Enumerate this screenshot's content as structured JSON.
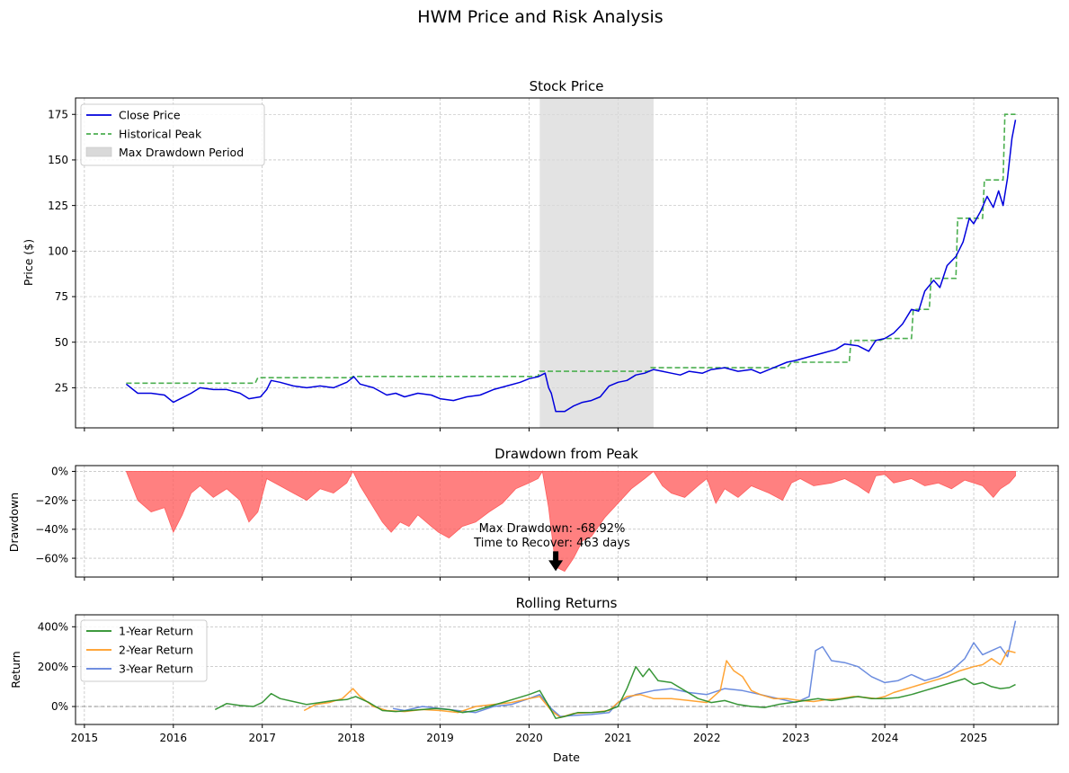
{
  "figure_title": "HWM Price and Risk Analysis",
  "colors": {
    "close": "#0000dd",
    "peak": "#4caf50",
    "drawdown_fill": "#ff5c5c",
    "drawdown_shade": "#d9d9d9",
    "ret1": "#228b22",
    "ret2": "#ff9a1f",
    "ret3": "#5b7fdb"
  },
  "x_axis": {
    "label": "Date",
    "ticks": [
      "2015",
      "2016",
      "2017",
      "2018",
      "2019",
      "2020",
      "2021",
      "2022",
      "2023",
      "2024",
      "2025"
    ]
  },
  "chart_data": [
    {
      "type": "line",
      "title": "Stock Price",
      "ylabel": "Price ($)",
      "xlim": [
        2014.9,
        2025.95
      ],
      "ylim": [
        3,
        184
      ],
      "yticks": [
        25,
        50,
        75,
        100,
        125,
        150,
        175
      ],
      "grid": true,
      "legend": "top-left",
      "shaded_period": {
        "name": "Max Drawdown Period",
        "start": 2020.12,
        "end": 2021.4
      },
      "series": [
        {
          "name": "Close Price",
          "x": [
            2015.47,
            2015.6,
            2015.75,
            2015.9,
            2016.0,
            2016.08,
            2016.2,
            2016.3,
            2016.45,
            2016.6,
            2016.75,
            2016.85,
            2016.98,
            2017.05,
            2017.1,
            2017.2,
            2017.35,
            2017.5,
            2017.65,
            2017.8,
            2017.95,
            2018.03,
            2018.1,
            2018.25,
            2018.4,
            2018.5,
            2018.6,
            2018.75,
            2018.9,
            2019.0,
            2019.15,
            2019.3,
            2019.45,
            2019.6,
            2019.75,
            2019.9,
            2020.0,
            2020.1,
            2020.18,
            2020.22,
            2020.25,
            2020.3,
            2020.4,
            2020.5,
            2020.6,
            2020.7,
            2020.8,
            2020.9,
            2021.0,
            2021.1,
            2021.2,
            2021.3,
            2021.4,
            2021.5,
            2021.6,
            2021.7,
            2021.8,
            2021.95,
            2022.05,
            2022.2,
            2022.35,
            2022.5,
            2022.6,
            2022.75,
            2022.9,
            2023.0,
            2023.15,
            2023.3,
            2023.45,
            2023.55,
            2023.7,
            2023.82,
            2023.9,
            2024.0,
            2024.1,
            2024.2,
            2024.3,
            2024.38,
            2024.45,
            2024.55,
            2024.62,
            2024.7,
            2024.8,
            2024.88,
            2024.95,
            2025.0,
            2025.08,
            2025.15,
            2025.22,
            2025.28,
            2025.33,
            2025.38,
            2025.43,
            2025.47
          ],
          "values": [
            27,
            22,
            22,
            21,
            17,
            19,
            22,
            25,
            24,
            24,
            22,
            19,
            20,
            24,
            29,
            28,
            26,
            25,
            26,
            25,
            28,
            31,
            27,
            25,
            21,
            22,
            20,
            22,
            21,
            19,
            18,
            20,
            21,
            24,
            26,
            28,
            30,
            31,
            33,
            25,
            22,
            12,
            12,
            15,
            17,
            18,
            20,
            26,
            28,
            29,
            32,
            33,
            35,
            34,
            33,
            32,
            34,
            33,
            35,
            36,
            34,
            35,
            33,
            36,
            39,
            40,
            42,
            44,
            46,
            49,
            48,
            45,
            51,
            52,
            55,
            60,
            68,
            67,
            78,
            84,
            80,
            92,
            97,
            105,
            118,
            115,
            122,
            130,
            124,
            133,
            125,
            140,
            162,
            172
          ]
        },
        {
          "name": "Historical Peak",
          "x": [
            2015.47,
            2016.92,
            2016.95,
            2018.0,
            2018.02,
            2020.1,
            2020.12,
            2021.35,
            2021.37,
            2022.9,
            2022.95,
            2023.6,
            2023.62,
            2023.95,
            2024.0,
            2024.3,
            2024.32,
            2024.5,
            2024.52,
            2024.8,
            2024.82,
            2025.1,
            2025.12,
            2025.33,
            2025.35,
            2025.47
          ],
          "values": [
            27.5,
            27.5,
            30.5,
            30.5,
            31.2,
            31.2,
            34,
            34,
            36,
            36,
            39,
            39,
            51,
            51,
            52,
            52,
            68,
            68,
            85,
            85,
            118,
            118,
            139,
            139,
            175,
            175
          ]
        }
      ]
    },
    {
      "type": "area",
      "title": "Drawdown from Peak",
      "ylabel": "Drawdown",
      "xlim": [
        2014.9,
        2025.95
      ],
      "ylim": [
        -73,
        4
      ],
      "yticks": [
        "0%",
        "−20%",
        "−40%",
        "−60%"
      ],
      "ytick_values": [
        0,
        -20,
        -40,
        -60
      ],
      "grid": true,
      "annotation": {
        "line1": "Max Drawdown: -68.92%",
        "line2": "Time to Recover: 463 days",
        "point_x": 2020.3,
        "point_y": -68.92
      },
      "series": [
        {
          "name": "Drawdown",
          "x": [
            2015.47,
            2015.6,
            2015.75,
            2015.9,
            2016.0,
            2016.1,
            2016.2,
            2016.3,
            2016.45,
            2016.6,
            2016.75,
            2016.85,
            2016.95,
            2017.05,
            2017.2,
            2017.35,
            2017.5,
            2017.65,
            2017.8,
            2017.95,
            2018.02,
            2018.1,
            2018.2,
            2018.35,
            2018.45,
            2018.55,
            2018.65,
            2018.75,
            2018.9,
            2018.98,
            2019.1,
            2019.25,
            2019.4,
            2019.55,
            2019.7,
            2019.85,
            2020.0,
            2020.1,
            2020.15,
            2020.22,
            2020.3,
            2020.4,
            2020.5,
            2020.6,
            2020.7,
            2020.85,
            2021.0,
            2021.15,
            2021.3,
            2021.4,
            2021.5,
            2021.6,
            2021.75,
            2021.9,
            2022.0,
            2022.1,
            2022.2,
            2022.35,
            2022.5,
            2022.7,
            2022.85,
            2022.95,
            2023.05,
            2023.2,
            2023.4,
            2023.55,
            2023.7,
            2023.82,
            2023.9,
            2024.0,
            2024.1,
            2024.3,
            2024.45,
            2024.6,
            2024.75,
            2024.9,
            2025.0,
            2025.1,
            2025.22,
            2025.3,
            2025.4,
            2025.47
          ],
          "values": [
            0,
            -20,
            -28,
            -25,
            -42,
            -30,
            -15,
            -10,
            -18,
            -12,
            -20,
            -35,
            -28,
            -5,
            -10,
            -15,
            -20,
            -12,
            -15,
            -8,
            0,
            -10,
            -20,
            -35,
            -42,
            -35,
            -38,
            -30,
            -38,
            -42,
            -46,
            -38,
            -35,
            -28,
            -22,
            -12,
            -8,
            -5,
            0,
            -25,
            -66,
            -69,
            -60,
            -48,
            -45,
            -32,
            -22,
            -12,
            -5,
            0,
            -10,
            -15,
            -18,
            -10,
            -5,
            -22,
            -12,
            -18,
            -10,
            -15,
            -20,
            -8,
            -5,
            -10,
            -8,
            -5,
            -10,
            -15,
            -3,
            -2,
            -8,
            -5,
            -10,
            -8,
            -12,
            -6,
            -8,
            -10,
            -18,
            -12,
            -8,
            -3
          ]
        }
      ]
    },
    {
      "type": "line",
      "title": "Rolling Returns",
      "ylabel": "Return",
      "xlabel": "Date",
      "xlim": [
        2014.9,
        2025.95
      ],
      "ylim": [
        -90,
        460
      ],
      "yticks": [
        "0%",
        "200%",
        "400%"
      ],
      "ytick_values": [
        0,
        200,
        400
      ],
      "grid": true,
      "legend": "top-left",
      "series": [
        {
          "name": "1-Year Return",
          "x": [
            2016.47,
            2016.6,
            2016.75,
            2016.9,
            2017.0,
            2017.1,
            2017.2,
            2017.35,
            2017.5,
            2017.65,
            2017.8,
            2017.95,
            2018.05,
            2018.2,
            2018.35,
            2018.5,
            2018.65,
            2018.8,
            2018.95,
            2019.1,
            2019.25,
            2019.4,
            2019.55,
            2019.7,
            2019.85,
            2020.0,
            2020.12,
            2020.2,
            2020.3,
            2020.4,
            2020.55,
            2020.7,
            2020.85,
            2021.0,
            2021.1,
            2021.2,
            2021.28,
            2021.35,
            2021.45,
            2021.6,
            2021.75,
            2021.9,
            2022.05,
            2022.2,
            2022.35,
            2022.5,
            2022.65,
            2022.8,
            2022.95,
            2023.1,
            2023.25,
            2023.4,
            2023.55,
            2023.7,
            2023.85,
            2024.0,
            2024.15,
            2024.3,
            2024.45,
            2024.6,
            2024.75,
            2024.9,
            2025.0,
            2025.1,
            2025.2,
            2025.3,
            2025.4,
            2025.47
          ],
          "values": [
            -15,
            15,
            5,
            0,
            20,
            65,
            40,
            25,
            10,
            20,
            30,
            35,
            50,
            20,
            -20,
            -25,
            -20,
            -15,
            -10,
            -15,
            -30,
            -20,
            0,
            20,
            40,
            60,
            80,
            20,
            -60,
            -50,
            -30,
            -30,
            -25,
            0,
            90,
            200,
            150,
            190,
            130,
            120,
            80,
            40,
            20,
            30,
            10,
            0,
            -5,
            10,
            20,
            30,
            40,
            30,
            40,
            50,
            40,
            40,
            45,
            60,
            80,
            100,
            120,
            140,
            110,
            120,
            100,
            90,
            95,
            110
          ]
        },
        {
          "name": "2-Year Return",
          "x": [
            2017.47,
            2017.6,
            2017.75,
            2017.9,
            2018.02,
            2018.1,
            2018.25,
            2018.4,
            2018.6,
            2018.8,
            2019.0,
            2019.2,
            2019.4,
            2019.6,
            2019.8,
            2020.0,
            2020.12,
            2020.25,
            2020.35,
            2020.5,
            2020.7,
            2020.9,
            2021.0,
            2021.1,
            2021.25,
            2021.4,
            2021.6,
            2021.8,
            2022.0,
            2022.15,
            2022.22,
            2022.3,
            2022.4,
            2022.5,
            2022.6,
            2022.75,
            2022.9,
            2023.05,
            2023.2,
            2023.35,
            2023.5,
            2023.65,
            2023.8,
            2023.9,
            2024.0,
            2024.1,
            2024.25,
            2024.4,
            2024.55,
            2024.7,
            2024.85,
            2025.0,
            2025.1,
            2025.2,
            2025.3,
            2025.38,
            2025.47
          ],
          "values": [
            -20,
            10,
            20,
            40,
            90,
            50,
            0,
            -20,
            -25,
            -15,
            -20,
            -30,
            0,
            10,
            20,
            40,
            50,
            -20,
            -55,
            -35,
            -30,
            -20,
            20,
            50,
            60,
            40,
            40,
            30,
            20,
            80,
            230,
            180,
            150,
            80,
            60,
            40,
            40,
            30,
            25,
            35,
            40,
            50,
            45,
            40,
            50,
            70,
            90,
            110,
            130,
            150,
            180,
            200,
            210,
            240,
            210,
            280,
            270
          ]
        },
        {
          "name": "3-Year Return",
          "x": [
            2018.47,
            2018.6,
            2018.8,
            2019.0,
            2019.2,
            2019.4,
            2019.6,
            2019.8,
            2020.0,
            2020.12,
            2020.25,
            2020.35,
            2020.5,
            2020.7,
            2020.9,
            2021.0,
            2021.2,
            2021.4,
            2021.6,
            2021.8,
            2022.0,
            2022.2,
            2022.4,
            2022.6,
            2022.8,
            2023.0,
            2023.15,
            2023.22,
            2023.3,
            2023.4,
            2023.55,
            2023.7,
            2023.85,
            2024.0,
            2024.15,
            2024.3,
            2024.45,
            2024.6,
            2024.75,
            2024.9,
            2025.0,
            2025.1,
            2025.2,
            2025.3,
            2025.38,
            2025.47
          ],
          "values": [
            -10,
            -20,
            0,
            -10,
            -20,
            -30,
            0,
            10,
            40,
            60,
            -10,
            -50,
            -45,
            -40,
            -30,
            20,
            60,
            80,
            90,
            70,
            60,
            90,
            80,
            60,
            40,
            20,
            50,
            280,
            300,
            230,
            220,
            200,
            150,
            120,
            130,
            160,
            130,
            150,
            180,
            240,
            320,
            260,
            280,
            300,
            250,
            430
          ]
        }
      ]
    }
  ]
}
